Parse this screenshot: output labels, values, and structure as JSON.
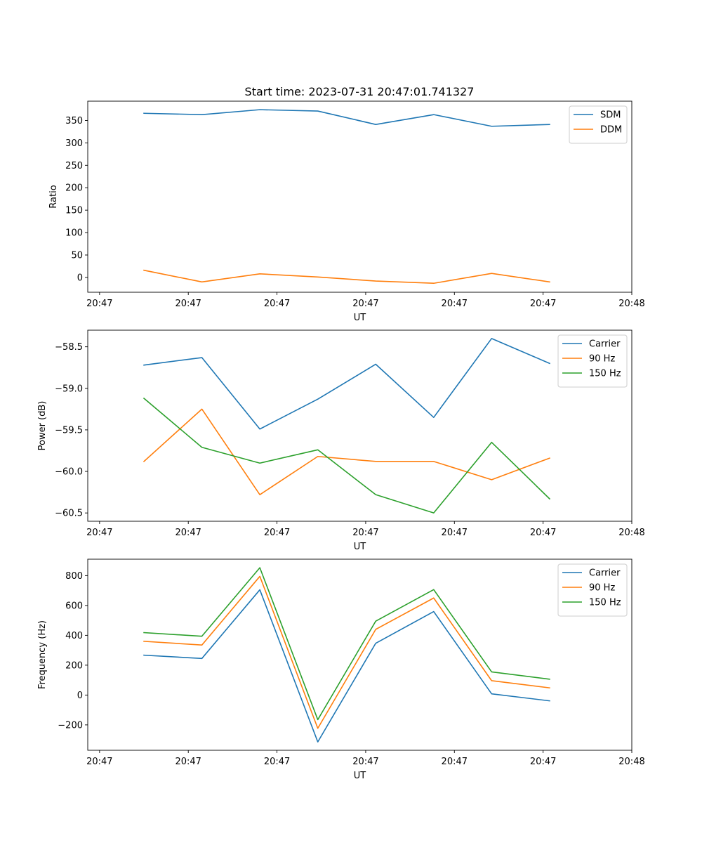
{
  "figure": {
    "title": "Start time: 2023-07-31 20:47:01.741327"
  },
  "chart_data": [
    {
      "type": "line",
      "xlabel": "UT",
      "ylabel": "Ratio",
      "xlim": [
        0,
        9.2
      ],
      "ylim": [
        -33,
        393
      ],
      "x_tick_positions": [
        0.2,
        1.7,
        3.2,
        4.7,
        6.2,
        7.7,
        9.2
      ],
      "x_tick_labels": [
        "20:47",
        "20:47",
        "20:47",
        "20:47",
        "20:47",
        "20:47",
        "20:48"
      ],
      "y_ticks": [
        0,
        50,
        100,
        150,
        200,
        250,
        300,
        350
      ],
      "x": [
        0.95,
        1.93,
        2.91,
        3.89,
        4.87,
        5.85,
        6.83,
        7.81
      ],
      "series": [
        {
          "name": "SDM",
          "color": "#1f77b4",
          "values": [
            366,
            363,
            374,
            371,
            341,
            363,
            337,
            341
          ]
        },
        {
          "name": "DDM",
          "color": "#ff7f0e",
          "values": [
            16,
            -10,
            8,
            1,
            -8,
            -13,
            9,
            -10
          ]
        }
      ],
      "legend": "top-right"
    },
    {
      "type": "line",
      "xlabel": "UT",
      "ylabel": "Power (dB)",
      "xlim": [
        0,
        9.2
      ],
      "ylim": [
        -60.6,
        -58.3
      ],
      "x_tick_positions": [
        0.2,
        1.7,
        3.2,
        4.7,
        6.2,
        7.7,
        9.2
      ],
      "x_tick_labels": [
        "20:47",
        "20:47",
        "20:47",
        "20:47",
        "20:47",
        "20:47",
        "20:48"
      ],
      "y_ticks": [
        -60.5,
        -60.0,
        -59.5,
        -59.0,
        -58.5
      ],
      "y_tick_labels": [
        "−60.5",
        "−60.0",
        "−59.5",
        "−59.0",
        "−58.5"
      ],
      "x": [
        0.95,
        1.93,
        2.91,
        3.89,
        4.87,
        5.85,
        6.83,
        7.81
      ],
      "series": [
        {
          "name": "Carrier",
          "color": "#1f77b4",
          "values": [
            -58.72,
            -58.63,
            -59.49,
            -59.13,
            -58.71,
            -59.35,
            -58.4,
            -58.7
          ]
        },
        {
          "name": "90 Hz",
          "color": "#ff7f0e",
          "values": [
            -59.88,
            -59.25,
            -60.28,
            -59.82,
            -59.88,
            -59.88,
            -60.1,
            -59.84
          ]
        },
        {
          "name": "150 Hz",
          "color": "#2ca02c",
          "values": [
            -59.12,
            -59.71,
            -59.9,
            -59.74,
            -60.28,
            -60.5,
            -59.65,
            -60.33
          ]
        }
      ],
      "legend": "top-right"
    },
    {
      "type": "line",
      "xlabel": "UT",
      "ylabel": "Frequency (Hz)",
      "xlim": [
        0,
        9.2
      ],
      "ylim": [
        -370,
        910
      ],
      "x_tick_positions": [
        0.2,
        1.7,
        3.2,
        4.7,
        6.2,
        7.7,
        9.2
      ],
      "x_tick_labels": [
        "20:47",
        "20:47",
        "20:47",
        "20:47",
        "20:47",
        "20:47",
        "20:48"
      ],
      "y_ticks": [
        -200,
        0,
        200,
        400,
        600,
        800
      ],
      "y_tick_labels": [
        "−200",
        "0",
        "200",
        "400",
        "600",
        "800"
      ],
      "x": [
        0.95,
        1.93,
        2.91,
        3.89,
        4.87,
        5.85,
        6.83,
        7.81
      ],
      "series": [
        {
          "name": "Carrier",
          "color": "#1f77b4",
          "values": [
            267,
            245,
            705,
            -314,
            347,
            559,
            8,
            -39
          ]
        },
        {
          "name": "90 Hz",
          "color": "#ff7f0e",
          "values": [
            360,
            335,
            795,
            -223,
            440,
            650,
            96,
            48
          ]
        },
        {
          "name": "150 Hz",
          "color": "#2ca02c",
          "values": [
            418,
            394,
            853,
            -165,
            495,
            706,
            155,
            106
          ]
        }
      ],
      "legend": "top-right"
    }
  ]
}
